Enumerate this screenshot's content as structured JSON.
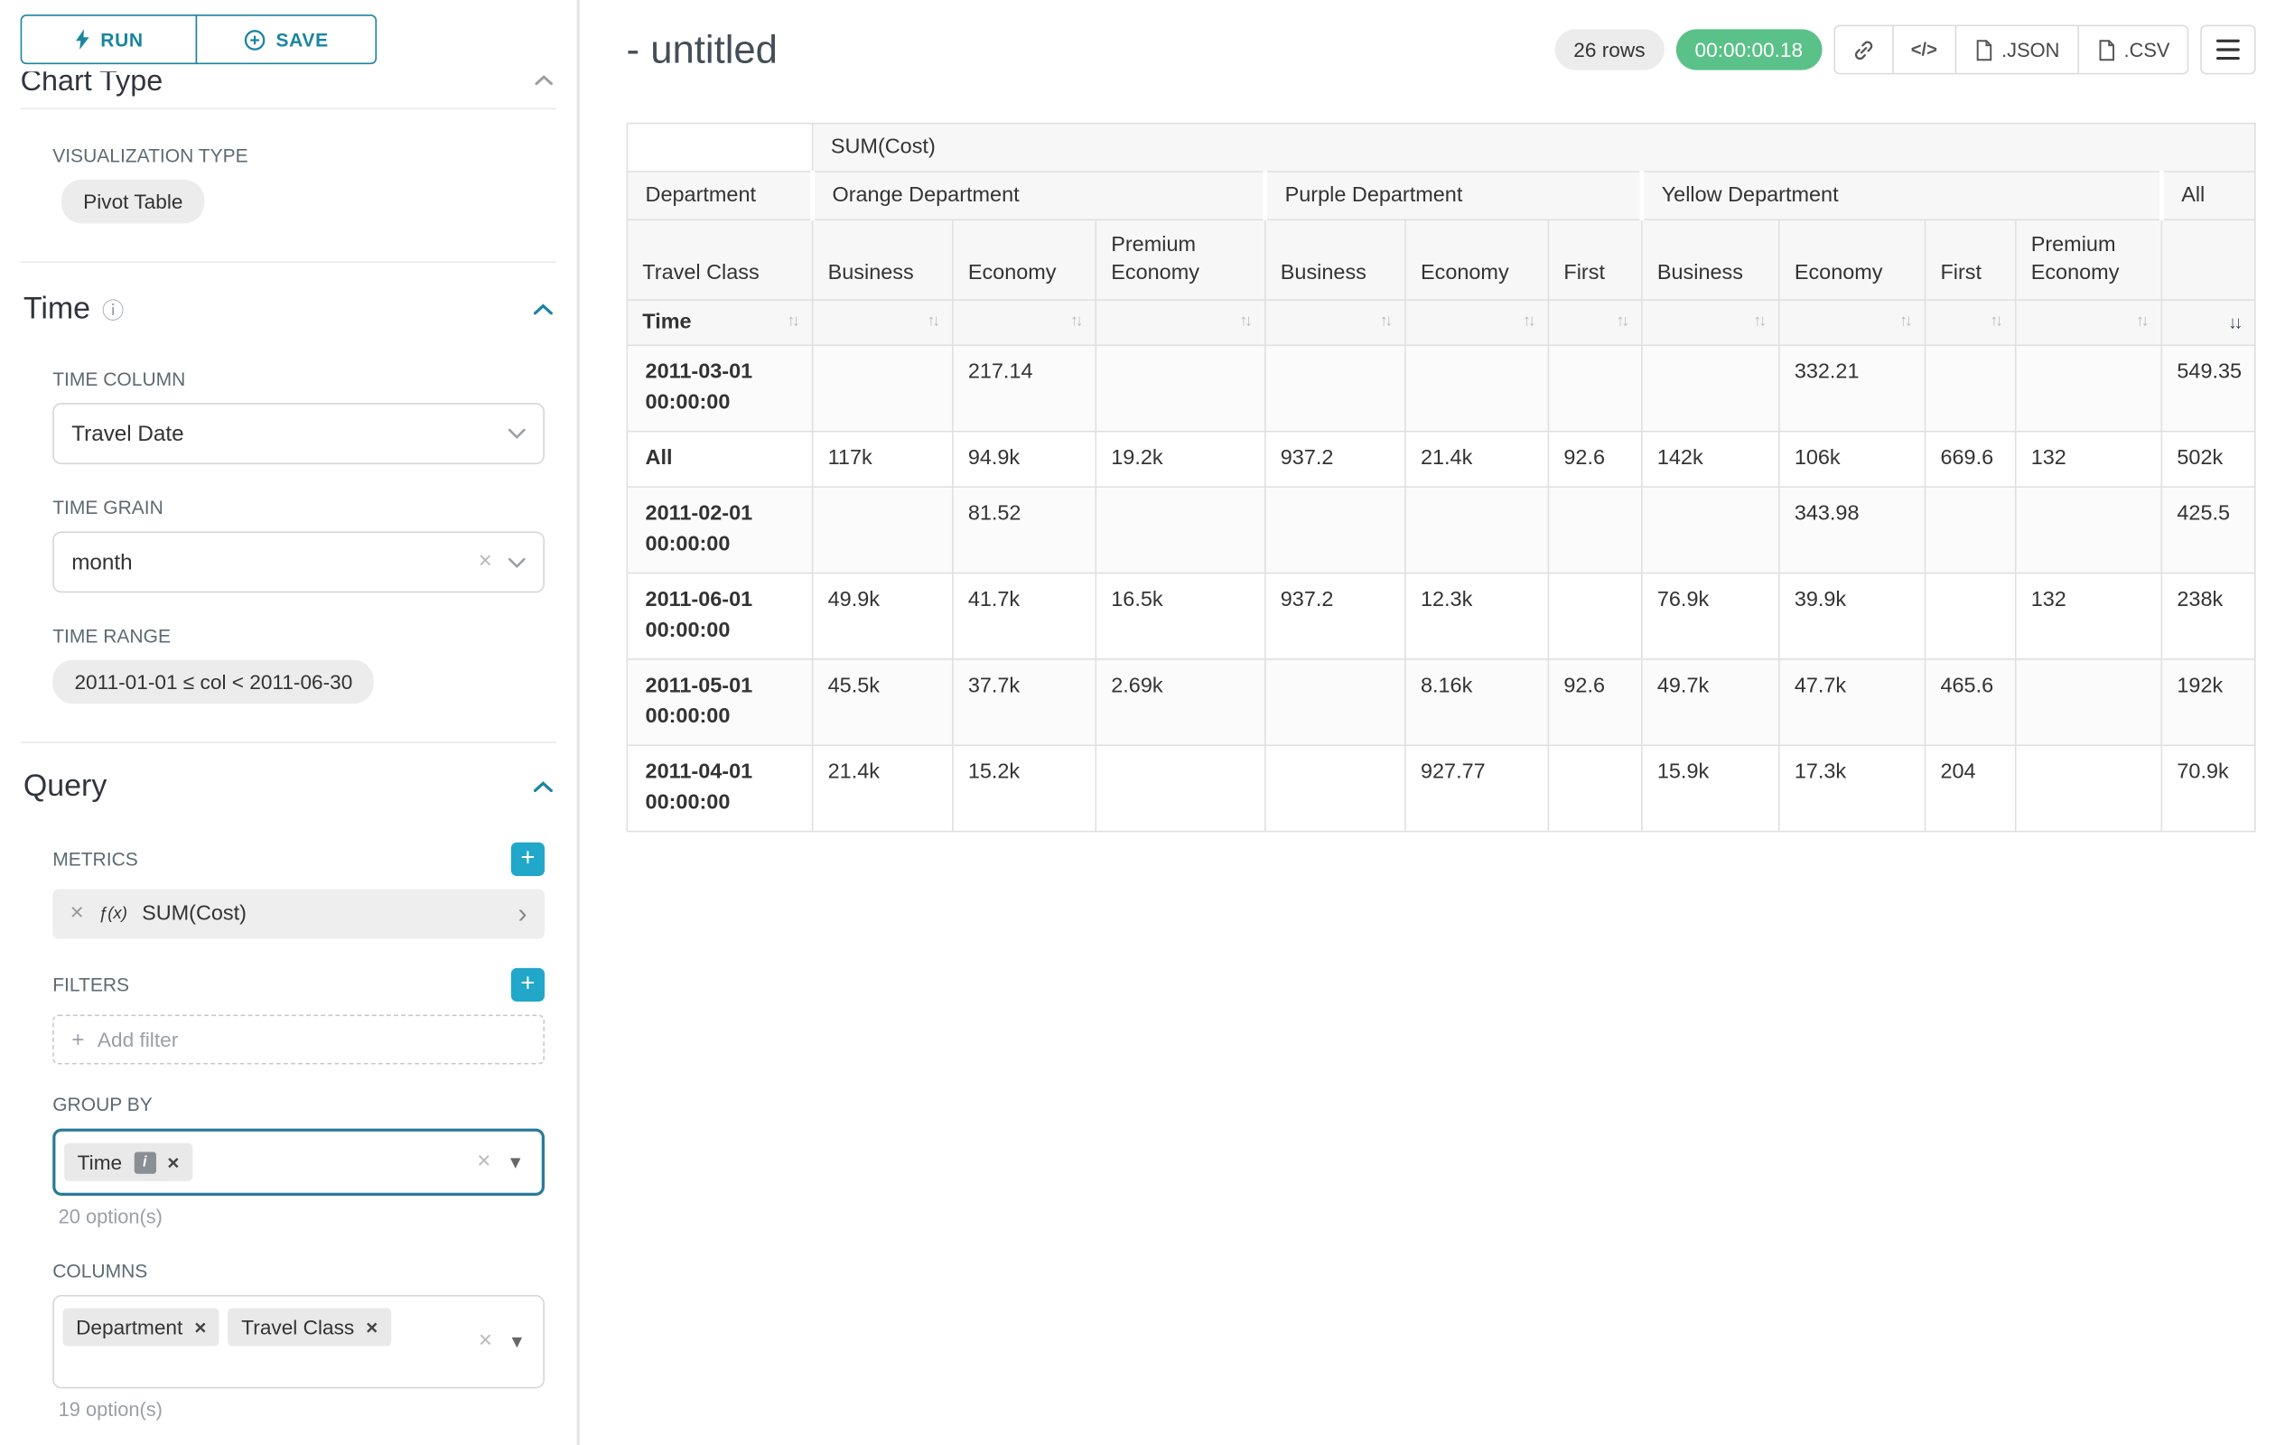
{
  "sidebar": {
    "run_label": "RUN",
    "save_label": "SAVE",
    "chart_type_heading": "Chart Type",
    "visualization": {
      "label": "VISUALIZATION TYPE",
      "value": "Pivot Table"
    },
    "time": {
      "title": "Time",
      "column_label": "TIME COLUMN",
      "column_value": "Travel Date",
      "grain_label": "TIME GRAIN",
      "grain_value": "month",
      "range_label": "TIME RANGE",
      "range_value": "2011-01-01 ≤ col < 2011-06-30"
    },
    "query": {
      "title": "Query",
      "metrics_label": "METRICS",
      "metric": {
        "fx": "ƒ(x)",
        "value": "SUM(Cost)"
      },
      "filters_label": "FILTERS",
      "add_filter": "Add filter",
      "group_by_label": "GROUP BY",
      "group_by_tags": [
        "Time"
      ],
      "group_by_hint": "20 option(s)",
      "columns_label": "COLUMNS",
      "columns_tags": [
        "Department",
        "Travel Class"
      ],
      "columns_hint": "19 option(s)"
    }
  },
  "header": {
    "title": "- untitled",
    "rows_badge": "26 rows",
    "duration_badge": "00:00:00.18",
    "code_icon_label": "</>",
    "json_label": ".JSON",
    "csv_label": ".CSV"
  },
  "chart_data": {
    "type": "table",
    "metric_header": "SUM(Cost)",
    "row_dim_label": "Department",
    "col_dim_label": "Travel Class",
    "time_label": "Time",
    "groups": [
      {
        "name": "Orange Department",
        "cols": [
          "Business",
          "Economy",
          "Premium Economy"
        ]
      },
      {
        "name": "Purple Department",
        "cols": [
          "Business",
          "Economy",
          "First"
        ]
      },
      {
        "name": "Yellow Department",
        "cols": [
          "Business",
          "Economy",
          "First",
          "Premium Economy"
        ]
      },
      {
        "name": "All",
        "cols": [
          ""
        ]
      }
    ],
    "rows": [
      {
        "label": "2011-03-01 00:00:00",
        "values": [
          "",
          "217.14",
          "",
          "",
          "",
          "",
          "",
          "332.21",
          "",
          "",
          "549.35"
        ]
      },
      {
        "label": "All",
        "values": [
          "117k",
          "94.9k",
          "19.2k",
          "937.2",
          "21.4k",
          "92.6",
          "142k",
          "106k",
          "669.6",
          "132",
          "502k"
        ]
      },
      {
        "label": "2011-02-01 00:00:00",
        "values": [
          "",
          "81.52",
          "",
          "",
          "",
          "",
          "",
          "343.98",
          "",
          "",
          "425.5"
        ]
      },
      {
        "label": "2011-06-01 00:00:00",
        "values": [
          "49.9k",
          "41.7k",
          "16.5k",
          "937.2",
          "12.3k",
          "",
          "76.9k",
          "39.9k",
          "",
          "132",
          "238k"
        ]
      },
      {
        "label": "2011-05-01 00:00:00",
        "values": [
          "45.5k",
          "37.7k",
          "2.69k",
          "",
          "8.16k",
          "92.6",
          "49.7k",
          "47.7k",
          "465.6",
          "",
          "192k"
        ]
      },
      {
        "label": "2011-04-01 00:00:00",
        "values": [
          "21.4k",
          "15.2k",
          "",
          "",
          "927.77",
          "",
          "15.9k",
          "17.3k",
          "204",
          "",
          "70.9k"
        ]
      }
    ]
  }
}
